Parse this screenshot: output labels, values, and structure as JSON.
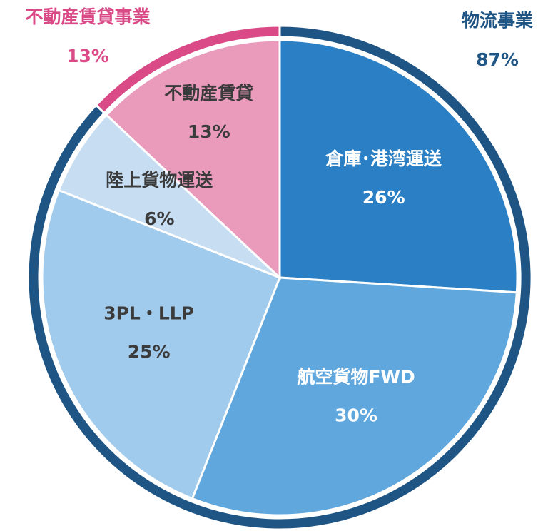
{
  "chart_data": {
    "type": "pie",
    "categories": [
      "倉庫･港湾運送",
      "航空貨物FWD",
      "3PL・LLP",
      "陸上貨物運送",
      "不動産賃貸"
    ],
    "values": [
      26,
      30,
      25,
      6,
      13
    ],
    "value_labels": [
      "26%",
      "30%",
      "25%",
      "6%",
      "13%"
    ],
    "colors": [
      "#2b80c5",
      "#5fa7dd",
      "#a1cbec",
      "#c6ddf2",
      "#ea9bbc"
    ],
    "label_colors": [
      "#ffffff",
      "#ffffff",
      "#3b3b3b",
      "#3b3b3b",
      "#3b3b3b"
    ],
    "outer": {
      "categories": [
        "物流事業",
        "不動産賃貸事業"
      ],
      "values": [
        87,
        13
      ],
      "value_labels": [
        "87%",
        "13%"
      ],
      "colors": [
        "#1f5584",
        "#d94a87"
      ]
    }
  }
}
